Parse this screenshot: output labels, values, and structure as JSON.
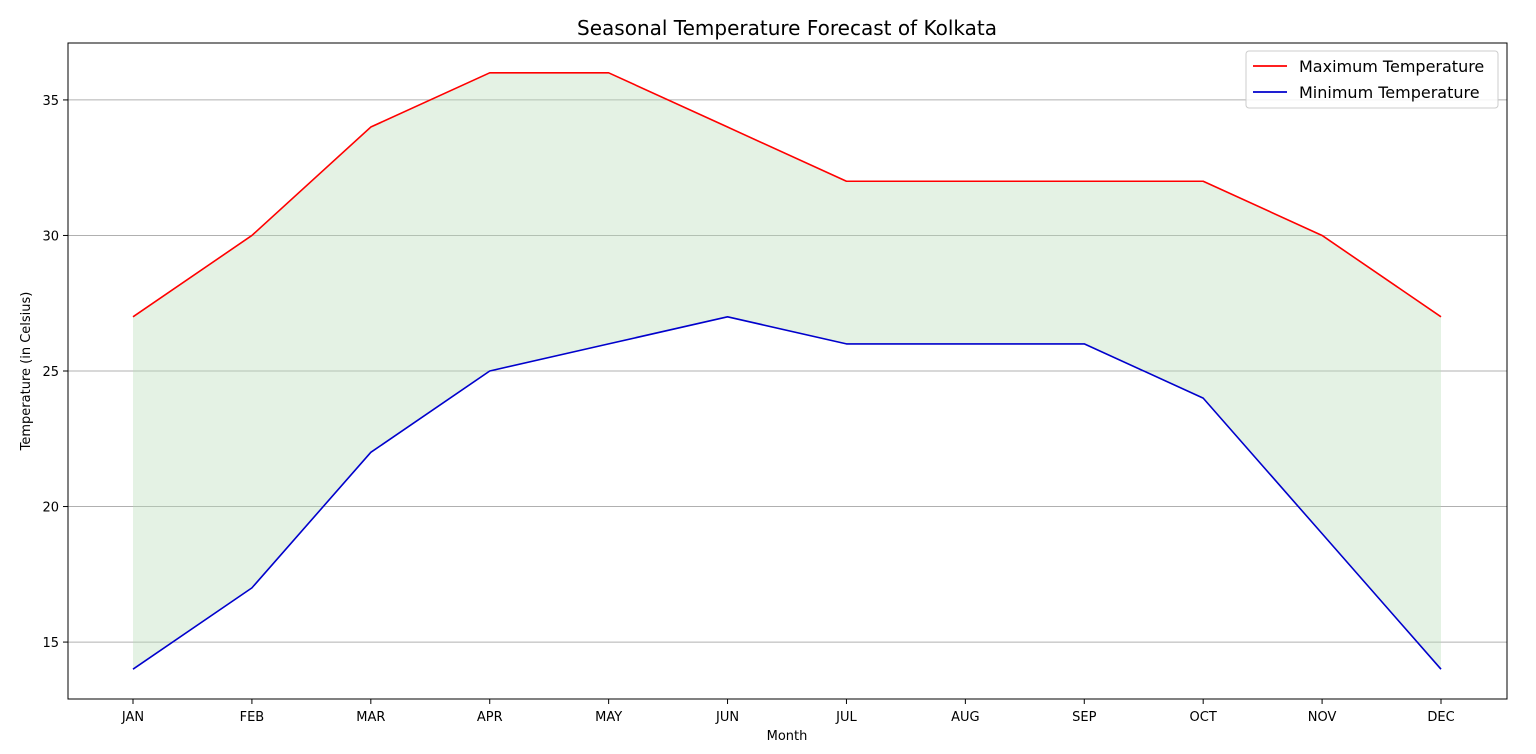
{
  "chart_data": {
    "type": "line",
    "title": "Seasonal Temperature Forecast of Kolkata",
    "xlabel": "Month",
    "ylabel": "Temperature (in Celsius)",
    "categories": [
      "JAN",
      "FEB",
      "MAR",
      "APR",
      "MAY",
      "JUN",
      "JUL",
      "AUG",
      "SEP",
      "OCT",
      "NOV",
      "DEC"
    ],
    "series": [
      {
        "name": "Maximum Temperature",
        "color": "#ff0000",
        "values": [
          27,
          30,
          34,
          36,
          36,
          34,
          32,
          32,
          32,
          32,
          30,
          27
        ]
      },
      {
        "name": "Minimum Temperature",
        "color": "#0000cc",
        "values": [
          14,
          17,
          22,
          25,
          26,
          27,
          26,
          26,
          26,
          24,
          19,
          14
        ]
      }
    ],
    "fill_between": {
      "color": "#b8dcb8",
      "opacity": 0.38
    },
    "y_ticks": [
      15,
      20,
      25,
      30,
      35
    ],
    "ylim": [
      12.9,
      37.1
    ],
    "grid": {
      "horizontal": true,
      "color": "#b0b0b0"
    },
    "legend": {
      "placement": "top-right"
    }
  }
}
